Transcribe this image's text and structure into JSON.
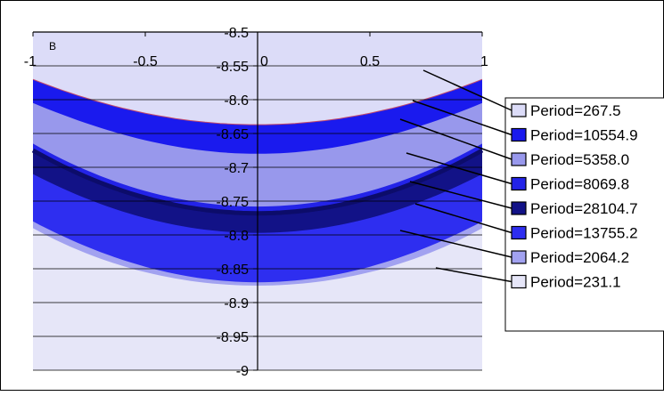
{
  "chart_data": {
    "type": "area",
    "corner_label": "B",
    "xlim": [
      -1,
      1
    ],
    "ylim": [
      -9,
      -8.5
    ],
    "x_ticks": [
      -1,
      -0.5,
      0,
      0.5,
      1
    ],
    "x_tick_labels": [
      "-1",
      "-0.5",
      "0",
      "0.5",
      "1"
    ],
    "y_ticks": [
      -8.5,
      -8.55,
      -8.6,
      -8.65,
      -8.7,
      -8.75,
      -8.8,
      -8.85,
      -8.9,
      -8.95,
      -9
    ],
    "y_tick_labels": [
      "-8.5",
      "-8.55",
      "-8.6",
      "-8.65",
      "-8.7",
      "-8.75",
      "-8.8",
      "-8.85",
      "-8.9",
      "-8.95",
      "-9"
    ],
    "grid": true,
    "legend_position": "right",
    "plot_background": "#dcdcf8",
    "x": [
      -1,
      -0.5,
      0,
      0.5,
      1
    ],
    "series": [
      {
        "name": "Period=267.5",
        "color": "#dcdcf8",
        "values": [
          -8.555,
          -8.605,
          -8.622,
          -8.605,
          -8.555
        ]
      },
      {
        "name": "Period=10554.9",
        "color": "#1a1aee",
        "values": [
          -8.57,
          -8.62,
          -8.637,
          -8.62,
          -8.57
        ]
      },
      {
        "name": "Period=5358.0",
        "color": "#9898ec",
        "values": [
          -8.605,
          -8.66,
          -8.68,
          -8.66,
          -8.605
        ]
      },
      {
        "name": "Period=8069.8",
        "color": "#2323e8",
        "values": [
          -8.665,
          -8.735,
          -8.758,
          -8.735,
          -8.665
        ]
      },
      {
        "name": "Period=28104.7",
        "color": "#121287",
        "values": [
          -8.675,
          -8.745,
          -8.768,
          -8.745,
          -8.675
        ]
      },
      {
        "name": "Period=13755.2",
        "color": "#2e2ef0",
        "values": [
          -8.71,
          -8.775,
          -8.797,
          -8.775,
          -8.71
        ]
      },
      {
        "name": "Period=2064.2",
        "color": "#a2a2f0",
        "values": [
          -8.78,
          -8.847,
          -8.87,
          -8.847,
          -8.78
        ]
      },
      {
        "name": "Period=231.1",
        "color": "#e6e6f8",
        "values": [
          -8.79,
          -8.855,
          -8.875,
          -8.855,
          -8.79
        ]
      }
    ]
  }
}
